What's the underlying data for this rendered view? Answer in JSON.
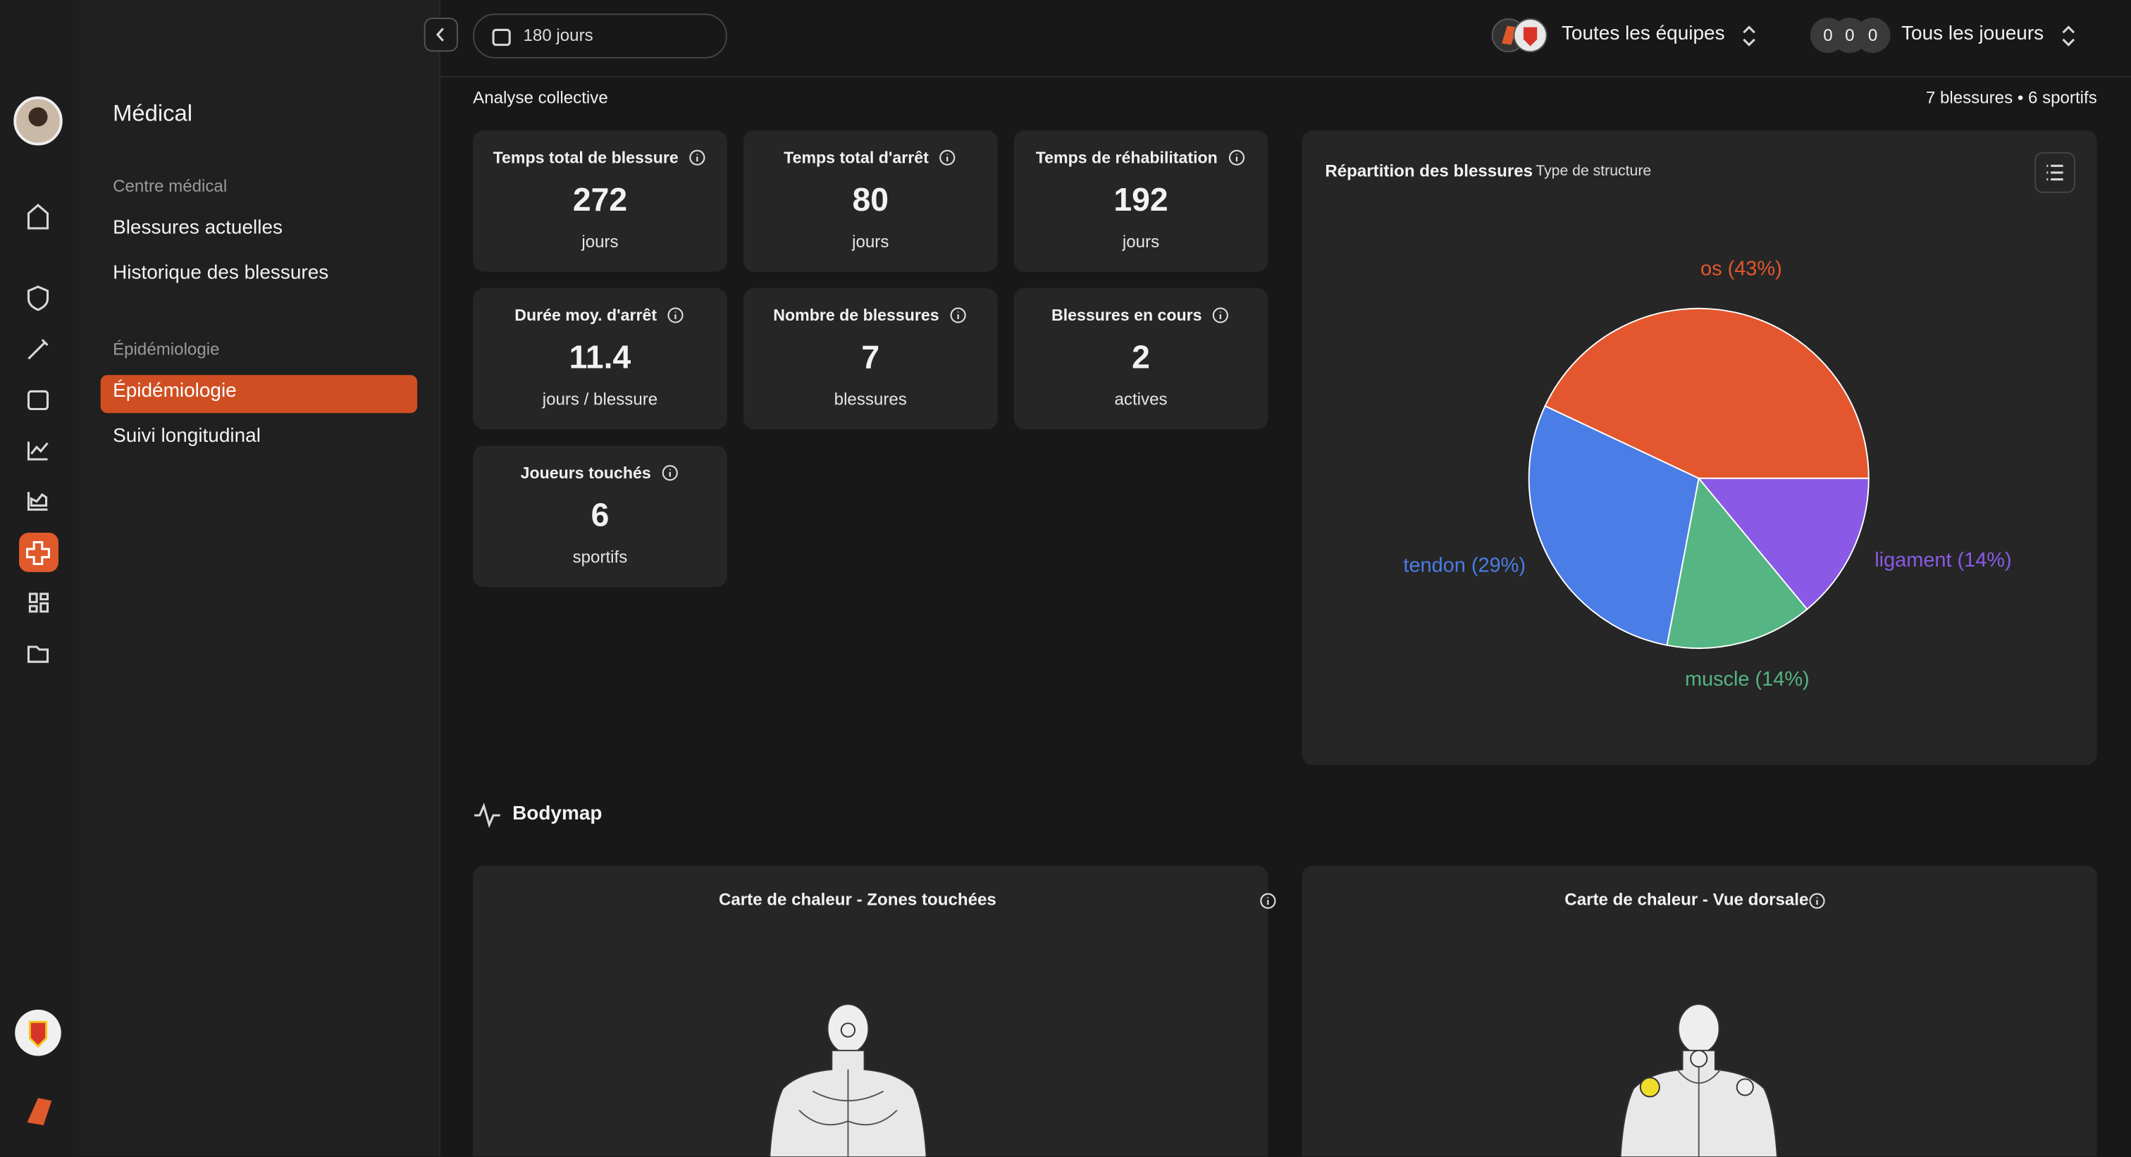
{
  "header": {
    "period": "180 jours",
    "teams": "Toutes les équipes",
    "player_counts": [
      "0",
      "0",
      "0"
    ],
    "players": "Tous les joueurs"
  },
  "sidebar": {
    "title": "Médical",
    "sections": [
      {
        "heading": "Centre médical",
        "items": [
          "Blessures actuelles",
          "Historique des blessures"
        ]
      },
      {
        "heading": "Épidémiologie",
        "items": [
          "Épidémiologie",
          "Suivi longitudinal"
        ]
      }
    ]
  },
  "subheader": {
    "title": "Analyse collective",
    "summary": "7 blessures • 6 sportifs"
  },
  "kpis": [
    {
      "title": "Temps total de blessure",
      "value": 272,
      "unit": "jours"
    },
    {
      "title": "Temps total d'arrêt",
      "value": 80,
      "unit": "jours"
    },
    {
      "title": "Temps de réhabilitation",
      "value": 192,
      "unit": "jours"
    },
    {
      "title": "Durée moy. d'arrêt",
      "value": 11.4,
      "unit": "jours / blessure"
    },
    {
      "title": "Nombre de blessures",
      "value": 7,
      "unit": "blessures"
    },
    {
      "title": "Blessures en cours",
      "value": 2,
      "unit": "actives"
    },
    {
      "title": "Joueurs touchés",
      "value": 6,
      "unit": "sportifs"
    }
  ],
  "chart_data": {
    "type": "pie",
    "title": "Répartition des blessures",
    "subtitle": "Type de structure",
    "values": [
      43,
      29,
      14,
      14
    ],
    "value_labels": [
      "os (43%)",
      "tendon (29%)",
      "muscle (14%)",
      "ligament (14%)"
    ],
    "colors": [
      "#e4572e",
      "#4a7de6",
      "#55b583",
      "#8a5ae6"
    ]
  },
  "bodymap": {
    "title": "Bodymap",
    "cards": [
      "Carte de chaleur - Zones touchées",
      "Carte de chaleur - Vue dorsale"
    ]
  }
}
